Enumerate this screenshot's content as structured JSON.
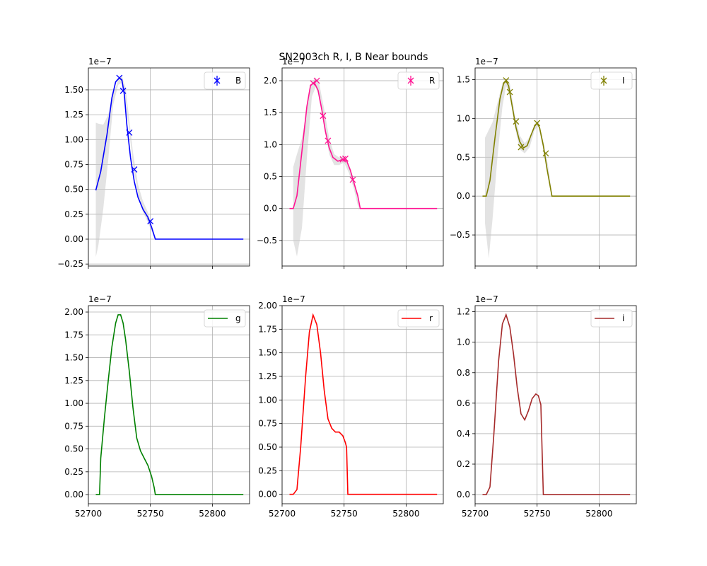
{
  "figure": {
    "title": "SN2003ch  R, I, B Near bounds"
  },
  "chart_data": [
    {
      "type": "line",
      "band": "B",
      "color": "#0000ff",
      "scale_label": "1e−7",
      "xlim": [
        52700,
        52830
      ],
      "ylim": [
        -0.27,
        1.72
      ],
      "xticks": [
        52700,
        52750,
        52800
      ],
      "xticklabels_shown": false,
      "yticks": [
        -0.25,
        0.0,
        0.25,
        0.5,
        0.75,
        1.0,
        1.25,
        1.5
      ],
      "yticklabels": [
        "−0.25",
        "0.00",
        "0.25",
        "0.50",
        "0.75",
        "1.00",
        "1.25",
        "1.50"
      ],
      "grid": true,
      "legend": {
        "label": "B",
        "marker": "errorbar-x",
        "position": "upper right"
      },
      "curve": {
        "x": [
          52706,
          52710,
          52715,
          52719,
          52722,
          52725,
          52727,
          52729,
          52731,
          52734,
          52737,
          52740,
          52744,
          52748,
          52751,
          52754,
          52760,
          52780,
          52800,
          52825
        ],
        "y": [
          0.49,
          0.68,
          1.05,
          1.42,
          1.58,
          1.62,
          1.6,
          1.45,
          1.15,
          0.82,
          0.58,
          0.42,
          0.3,
          0.22,
          0.12,
          0.0,
          0.0,
          0.0,
          0.0,
          0.0
        ]
      },
      "band_area": {
        "x": [
          52706,
          52708,
          52712,
          52716,
          52720,
          52724,
          52727,
          52730,
          52733,
          52736,
          52740,
          52744,
          52748,
          52751,
          52754
        ],
        "upper": [
          1.17,
          1.16,
          1.15,
          1.25,
          1.45,
          1.6,
          1.64,
          1.52,
          1.2,
          0.87,
          0.55,
          0.38,
          0.27,
          0.14,
          0.0
        ],
        "lower": [
          -0.18,
          -0.07,
          0.3,
          0.8,
          1.35,
          1.55,
          1.57,
          1.4,
          1.08,
          0.75,
          0.45,
          0.27,
          0.17,
          0.08,
          0.0
        ]
      },
      "points": {
        "x": [
          52725,
          52728,
          52733,
          52737,
          52750
        ],
        "y": [
          1.62,
          1.49,
          1.07,
          0.7,
          0.18
        ]
      }
    },
    {
      "type": "line",
      "band": "R",
      "color": "#ff1493",
      "scale_label": "1e−7",
      "xlim": [
        52700,
        52830
      ],
      "ylim": [
        -0.9,
        2.2
      ],
      "xticks": [
        52700,
        52750,
        52800
      ],
      "xticklabels_shown": false,
      "yticks": [
        -0.5,
        0.0,
        0.5,
        1.0,
        1.5,
        2.0
      ],
      "yticklabels": [
        "−0.5",
        "0.0",
        "0.5",
        "1.0",
        "1.5",
        "2.0"
      ],
      "grid": true,
      "legend": {
        "label": "R",
        "marker": "errorbar-x",
        "position": "upper right"
      },
      "curve": {
        "x": [
          52706,
          52709,
          52712,
          52716,
          52720,
          52723,
          52726,
          52729,
          52732,
          52735,
          52738,
          52741,
          52745,
          52749,
          52752,
          52755,
          52758,
          52761,
          52763,
          52780,
          52800,
          52825
        ],
        "y": [
          0.0,
          0.0,
          0.2,
          0.9,
          1.6,
          1.93,
          1.97,
          1.85,
          1.55,
          1.2,
          0.95,
          0.8,
          0.74,
          0.77,
          0.75,
          0.6,
          0.4,
          0.2,
          0.0,
          0.0,
          0.0,
          0.0
        ]
      },
      "band_area": {
        "x": [
          52709,
          52712,
          52716,
          52720,
          52724,
          52727,
          52730,
          52734,
          52738,
          52742,
          52746,
          52750,
          52754,
          52758,
          52762
        ],
        "upper": [
          0.65,
          0.85,
          1.1,
          1.55,
          1.98,
          2.05,
          1.95,
          1.55,
          1.1,
          0.85,
          0.8,
          0.82,
          0.68,
          0.45,
          0.05
        ],
        "lower": [
          -0.5,
          -0.75,
          -0.3,
          0.8,
          1.75,
          1.9,
          1.75,
          1.3,
          0.85,
          0.68,
          0.68,
          0.72,
          0.55,
          0.3,
          -0.03
        ]
      },
      "points": {
        "x": [
          52725,
          52728,
          52733,
          52737,
          52749,
          52751,
          52757
        ],
        "y": [
          1.96,
          2.0,
          1.45,
          1.06,
          0.77,
          0.78,
          0.45
        ]
      }
    },
    {
      "type": "line",
      "band": "I",
      "color": "#808000",
      "scale_label": "1e−7",
      "xlim": [
        52700,
        52830
      ],
      "ylim": [
        -0.9,
        1.65
      ],
      "xticks": [
        52700,
        52750,
        52800
      ],
      "xticklabels_shown": false,
      "yticks": [
        -0.5,
        0.0,
        0.5,
        1.0,
        1.5
      ],
      "yticklabels": [
        "−0.5",
        "0.0",
        "0.5",
        "1.0",
        "1.5"
      ],
      "grid": true,
      "legend": {
        "label": "I",
        "marker": "errorbar-x",
        "position": "upper right"
      },
      "curve": {
        "x": [
          52706,
          52709,
          52712,
          52716,
          52720,
          52723,
          52725,
          52727,
          52730,
          52733,
          52736,
          52739,
          52742,
          52745,
          52748,
          52750,
          52752,
          52755,
          52758,
          52762,
          52780,
          52800,
          52825
        ],
        "y": [
          0.0,
          0.0,
          0.2,
          0.75,
          1.25,
          1.45,
          1.48,
          1.42,
          1.15,
          0.88,
          0.7,
          0.62,
          0.65,
          0.78,
          0.9,
          0.94,
          0.88,
          0.65,
          0.35,
          0.0,
          0.0,
          0.0,
          0.0
        ]
      },
      "band_area": {
        "x": [
          52708,
          52711,
          52714,
          52718,
          52722,
          52725,
          52728,
          52732,
          52736,
          52740,
          52744,
          52748,
          52751,
          52755,
          52759,
          52762
        ],
        "upper": [
          0.75,
          0.85,
          0.95,
          1.2,
          1.45,
          1.52,
          1.45,
          1.05,
          0.78,
          0.68,
          0.76,
          0.93,
          0.97,
          0.7,
          0.38,
          0.02
        ],
        "lower": [
          -0.35,
          -0.8,
          -0.3,
          0.5,
          1.15,
          1.42,
          1.3,
          0.9,
          0.6,
          0.55,
          0.63,
          0.85,
          0.9,
          0.6,
          0.3,
          -0.02
        ]
      },
      "points": {
        "x": [
          52725,
          52728,
          52733,
          52737,
          52750,
          52757
        ],
        "y": [
          1.49,
          1.34,
          0.96,
          0.63,
          0.94,
          0.55
        ]
      }
    },
    {
      "type": "line",
      "band": "g",
      "color": "#008000",
      "scale_label": "1e−7",
      "xlim": [
        52700,
        52830
      ],
      "ylim": [
        -0.1,
        2.07
      ],
      "xticks": [
        52700,
        52750,
        52800
      ],
      "xticklabels": [
        "52700",
        "52750",
        "52800"
      ],
      "xticklabels_shown": true,
      "yticks": [
        0.0,
        0.25,
        0.5,
        0.75,
        1.0,
        1.25,
        1.5,
        1.75,
        2.0
      ],
      "yticklabels": [
        "0.00",
        "0.25",
        "0.50",
        "0.75",
        "1.00",
        "1.25",
        "1.50",
        "1.75",
        "2.00"
      ],
      "grid": true,
      "legend": {
        "label": "g",
        "marker": "line",
        "position": "upper right"
      },
      "curve": {
        "x": [
          52706,
          52709,
          52710,
          52713,
          52716,
          52719,
          52722,
          52724,
          52726,
          52728,
          52730,
          52733,
          52736,
          52739,
          52742,
          52745,
          52748,
          52751,
          52753,
          52754,
          52760,
          52780,
          52800,
          52825
        ],
        "y": [
          0.0,
          0.0,
          0.4,
          0.85,
          1.25,
          1.62,
          1.88,
          1.97,
          1.97,
          1.88,
          1.7,
          1.35,
          0.95,
          0.62,
          0.48,
          0.4,
          0.32,
          0.2,
          0.08,
          0.0,
          0.0,
          0.0,
          0.0,
          0.0
        ]
      }
    },
    {
      "type": "line",
      "band": "r",
      "color": "#ff0000",
      "scale_label": "1e−7",
      "xlim": [
        52700,
        52830
      ],
      "ylim": [
        -0.1,
        2.0
      ],
      "xticks": [
        52700,
        52750,
        52800
      ],
      "xticklabels": [
        "52700",
        "52750",
        "52800"
      ],
      "xticklabels_shown": true,
      "yticks": [
        0.0,
        0.25,
        0.5,
        0.75,
        1.0,
        1.25,
        1.5,
        1.75,
        2.0
      ],
      "yticklabels": [
        "0.00",
        "0.25",
        "0.50",
        "0.75",
        "1.00",
        "1.25",
        "1.50",
        "1.75",
        "2.00"
      ],
      "grid": true,
      "legend": {
        "label": "r",
        "marker": "line",
        "position": "upper right"
      },
      "curve": {
        "x": [
          52706,
          52709,
          52712,
          52715,
          52719,
          52722,
          52725,
          52728,
          52731,
          52734,
          52737,
          52740,
          52743,
          52746,
          52749,
          52751,
          52752,
          52753,
          52754,
          52760,
          52780,
          52800,
          52825
        ],
        "y": [
          0.0,
          0.0,
          0.05,
          0.5,
          1.25,
          1.72,
          1.9,
          1.8,
          1.5,
          1.1,
          0.8,
          0.7,
          0.66,
          0.66,
          0.62,
          0.55,
          0.5,
          0.0,
          0.0,
          0.0,
          0.0,
          0.0,
          0.0
        ]
      }
    },
    {
      "type": "line",
      "band": "i",
      "color": "#a52a2a",
      "scale_label": "1e−7",
      "xlim": [
        52700,
        52830
      ],
      "ylim": [
        -0.06,
        1.24
      ],
      "xticks": [
        52700,
        52750,
        52800
      ],
      "xticklabels": [
        "52700",
        "52750",
        "52800"
      ],
      "xticklabels_shown": true,
      "yticks": [
        0.0,
        0.2,
        0.4,
        0.6,
        0.8,
        1.0,
        1.2
      ],
      "yticklabels": [
        "0.0",
        "0.2",
        "0.4",
        "0.6",
        "0.8",
        "1.0",
        "1.2"
      ],
      "grid": true,
      "legend": {
        "label": "i",
        "marker": "line",
        "position": "upper right"
      },
      "curve": {
        "x": [
          52706,
          52709,
          52712,
          52715,
          52719,
          52722,
          52725,
          52728,
          52731,
          52734,
          52737,
          52740,
          52743,
          52746,
          52749,
          52751,
          52753,
          52754,
          52755,
          52760,
          52780,
          52800,
          52825
        ],
        "y": [
          0.0,
          0.0,
          0.05,
          0.38,
          0.88,
          1.12,
          1.18,
          1.1,
          0.92,
          0.7,
          0.53,
          0.49,
          0.55,
          0.63,
          0.66,
          0.65,
          0.59,
          0.3,
          0.0,
          0.0,
          0.0,
          0.0,
          0.0
        ]
      }
    }
  ]
}
